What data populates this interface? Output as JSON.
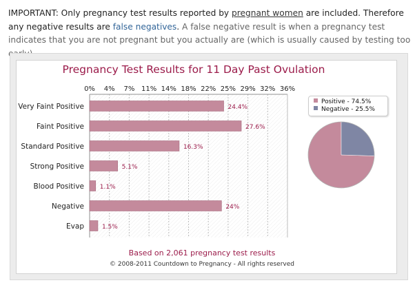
{
  "notice": {
    "lead": "IMPORTANT: Only pregnancy test results reported by ",
    "link1": "pregnant women",
    "mid": " are included. Therefore any negative results are ",
    "link2": "false negatives",
    "dot": ".",
    "tail": " A false negative result is when a pregnancy test indicates that you are not pregnant but you actually are (which is usually caused by testing too early)."
  },
  "chart_data": [
    {
      "type": "bar",
      "orientation": "horizontal",
      "title": "Pregnancy Test Results for 11 Day Past Ovulation",
      "categories": [
        "Very Faint Positive",
        "Faint Positive",
        "Standard Positive",
        "Strong Positive",
        "Blood Positive",
        "Negative",
        "Evap"
      ],
      "values": [
        24.4,
        27.6,
        16.3,
        5.1,
        1.1,
        24,
        1.5
      ],
      "data_labels": [
        "24.4%",
        "27.6%",
        "16.3%",
        "5.1%",
        "1.1%",
        "24%",
        "1.5%"
      ],
      "xticks": [
        "0%",
        "4%",
        "7%",
        "11%",
        "14%",
        "18%",
        "22%",
        "25%",
        "29%",
        "32%",
        "36%"
      ],
      "xlim": [
        0,
        36
      ],
      "axis_position": "top",
      "grid": true,
      "color": "#c48a9c"
    },
    {
      "type": "pie",
      "labels": [
        "Positive - 74.5%",
        "Negative - 25.5%"
      ],
      "values": [
        74.5,
        25.5
      ],
      "colors": [
        "#c48a9c",
        "#7f86a4"
      ],
      "legend": "top"
    }
  ],
  "footer": {
    "based_on": "Based on 2,061 pregnancy test results",
    "copyright": "© 2008-2011 Countdown to Pregnancy - All rights reserved"
  }
}
